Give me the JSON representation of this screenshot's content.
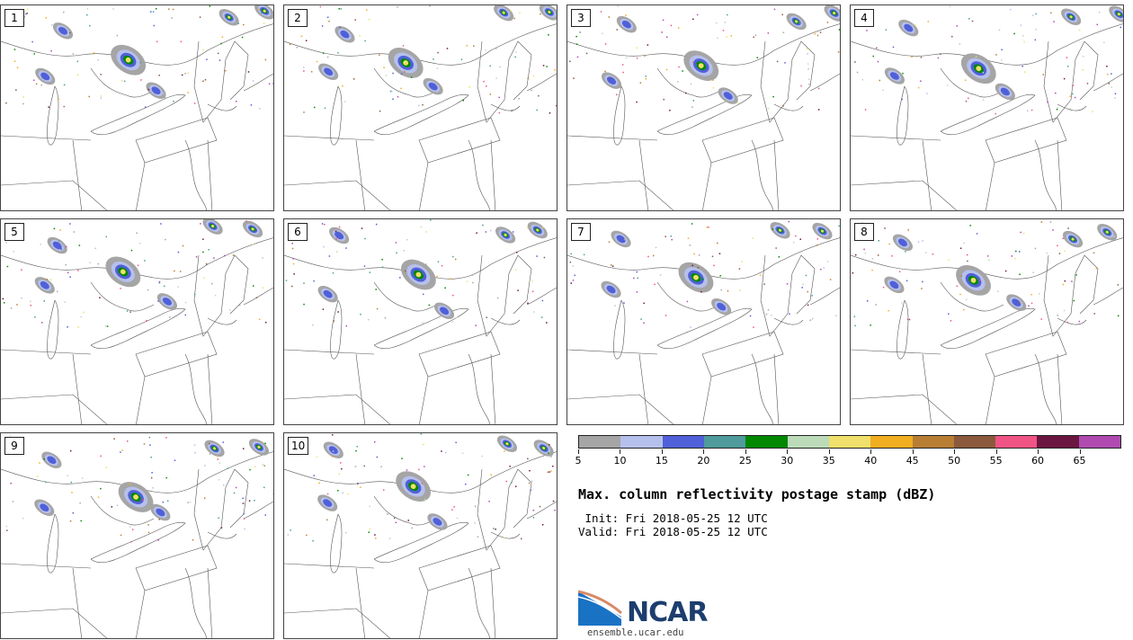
{
  "panels": [
    {
      "label": "1"
    },
    {
      "label": "2"
    },
    {
      "label": "3"
    },
    {
      "label": "4"
    },
    {
      "label": "5"
    },
    {
      "label": "6"
    },
    {
      "label": "7"
    },
    {
      "label": "8"
    },
    {
      "label": "9"
    },
    {
      "label": "10"
    }
  ],
  "colorbar": {
    "colors": [
      "#a5a5a5",
      "#b6c0ec",
      "#5060d8",
      "#4f9a9a",
      "#008800",
      "#bcdbb8",
      "#f0df6a",
      "#f0ae20",
      "#b87e34",
      "#8b5a3c",
      "#f05484",
      "#6a1640",
      "#b04ab0"
    ],
    "tick_labels": [
      "5",
      "10",
      "15",
      "20",
      "25",
      "30",
      "35",
      "40",
      "45",
      "50",
      "55",
      "60",
      "65"
    ]
  },
  "title": "Max. column reflectivity postage stamp (dBZ)",
  "init_text": " Init: Fri 2018-05-25 12 UTC",
  "valid_text": "Valid: Fri 2018-05-25 12 UTC",
  "logo": {
    "name": "NCAR",
    "url": "ensemble.ucar.edu"
  }
}
